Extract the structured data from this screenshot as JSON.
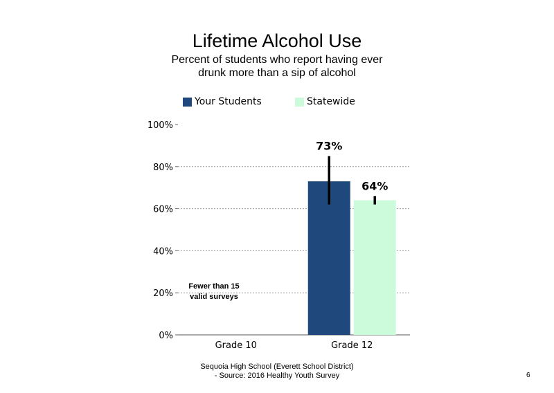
{
  "chart_data": {
    "type": "bar",
    "title": "Lifetime Alcohol Use",
    "subtitle": "Percent of students who report having ever drunk more than a sip of alcohol",
    "categories": [
      "Grade 10",
      "Grade 12"
    ],
    "series": [
      {
        "name": "Your Students",
        "color": "#1F497D",
        "values": [
          null,
          73
        ],
        "labels": [
          "",
          "73%"
        ],
        "error": [
          null,
          [
            62,
            85
          ]
        ]
      },
      {
        "name": "Statewide",
        "color": "#CCFBDB",
        "values": [
          null,
          64
        ],
        "labels": [
          "",
          "64%"
        ],
        "error": [
          null,
          [
            62,
            66
          ]
        ]
      }
    ],
    "ylim": [
      0,
      100
    ],
    "yticks": [
      "0%",
      "20%",
      "40%",
      "60%",
      "80%",
      "100%"
    ],
    "ytick_values": [
      0,
      20,
      40,
      60,
      80,
      100
    ],
    "grid": true,
    "legend_position": "top",
    "annotations": [
      "Fewer than 15",
      "valid surveys"
    ]
  },
  "footer": {
    "line1": "Sequoia High School (Everett School District)",
    "line2": "- Source: 2016 Healthy Youth Survey"
  },
  "page_number": "6"
}
